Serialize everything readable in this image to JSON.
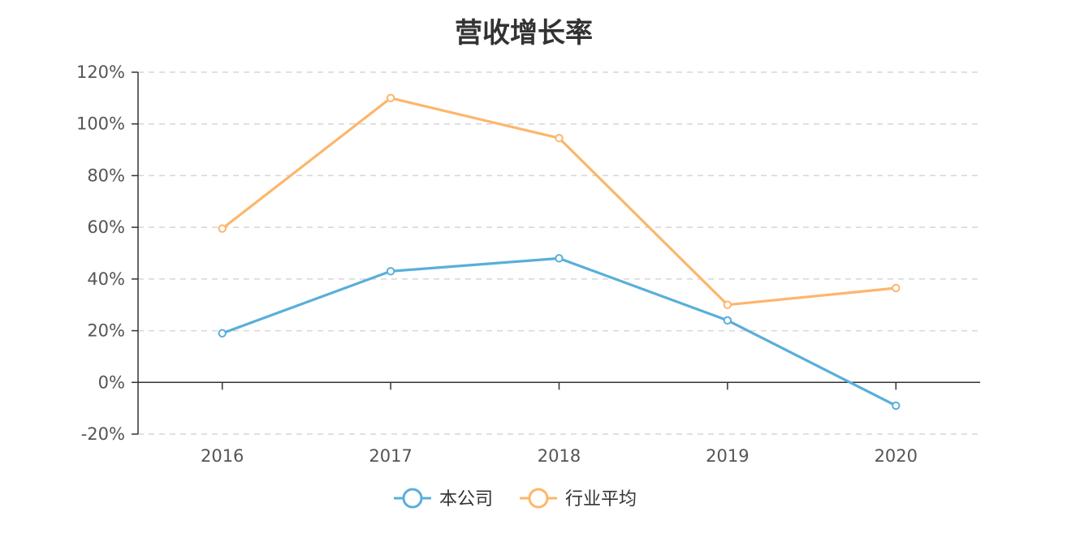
{
  "chart_data": {
    "type": "line",
    "title": "营收增长率",
    "xlabel": "",
    "ylabel": "",
    "categories": [
      "2016",
      "2017",
      "2018",
      "2019",
      "2020"
    ],
    "y_ticks": [
      "-20%",
      "0%",
      "20%",
      "40%",
      "60%",
      "80%",
      "100%",
      "120%"
    ],
    "ylim": [
      -20,
      120
    ],
    "y_unit": "%",
    "grid": true,
    "grid_style": "dashed",
    "legend_position": "bottom-center",
    "series": [
      {
        "name": "本公司",
        "color": "#5aaedb",
        "values": [
          19,
          43,
          48,
          24,
          -9
        ]
      },
      {
        "name": "行业平均",
        "color": "#fdb66a",
        "values": [
          59.5,
          110,
          94.5,
          30,
          36.5
        ]
      }
    ]
  }
}
